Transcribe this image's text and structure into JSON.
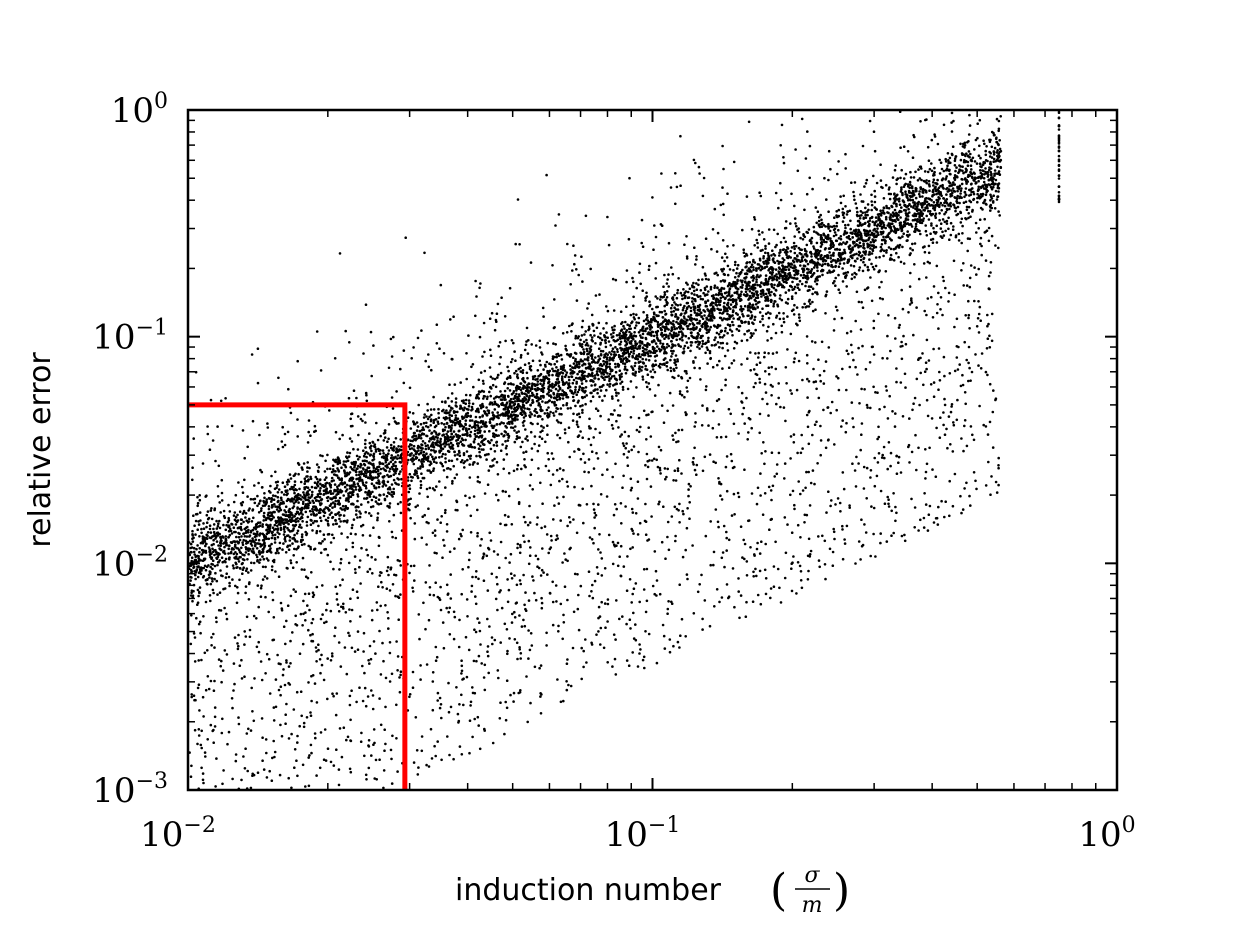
{
  "chart_data": {
    "type": "scatter",
    "xlabel": "induction number",
    "xlabel_fraction": {
      "numerator": "σ",
      "denominator": "m"
    },
    "ylabel": "relative error",
    "xscale": "log",
    "yscale": "log",
    "xlim": [
      0.01,
      1
    ],
    "ylim": [
      0.001,
      1
    ],
    "grid": false,
    "point_color": "#000000",
    "x_ticks": [
      {
        "base": "10",
        "exp": "−2",
        "value": 0.01
      },
      {
        "base": "10",
        "exp": "−1",
        "value": 0.1
      },
      {
        "base": "10",
        "exp": "0",
        "value": 1
      }
    ],
    "y_ticks": [
      {
        "base": "10",
        "exp": "−3",
        "value": 0.001
      },
      {
        "base": "10",
        "exp": "−2",
        "value": 0.01
      },
      {
        "base": "10",
        "exp": "−1",
        "value": 0.1
      },
      {
        "base": "10",
        "exp": "0",
        "value": 1
      }
    ],
    "scatter_trend": {
      "description": "dense band of points following relative_error ≈ induction_number with wide scatter below the band",
      "point_count_approx": 20000
    },
    "outlier_column": {
      "x": 0.75,
      "y_range": [
        0.37,
        1.0
      ]
    },
    "threshold_box": {
      "color": "#ff0000",
      "x_max": 0.0293,
      "y_max": 0.05
    }
  }
}
